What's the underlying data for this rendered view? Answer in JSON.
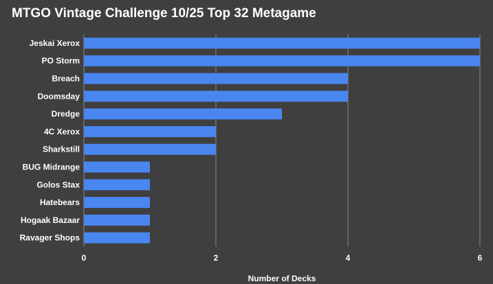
{
  "chart_data": {
    "type": "bar",
    "orientation": "horizontal",
    "title": "MTGO Vintage Challenge 10/25 Top 32 Metagame",
    "xlabel": "Number of Decks",
    "ylabel": "",
    "categories": [
      "Jeskai Xerox",
      "PO Storm",
      "Breach",
      "Doomsday",
      "Dredge",
      "4C Xerox",
      "Sharkstill",
      "BUG Midrange",
      "Golos Stax",
      "Hatebears",
      "Hogaak Bazaar",
      "Ravager Shops"
    ],
    "values": [
      6,
      6,
      4,
      4,
      3,
      2,
      2,
      1,
      1,
      1,
      1,
      1
    ],
    "xlim": [
      0,
      6
    ],
    "xticks": [
      0,
      2,
      4,
      6
    ],
    "grid": true,
    "legend": "none",
    "colors": {
      "bar": "#4a86f0",
      "background": "#3f3f3f",
      "grid": "#8a8a8a",
      "text": "#ffffff"
    }
  }
}
